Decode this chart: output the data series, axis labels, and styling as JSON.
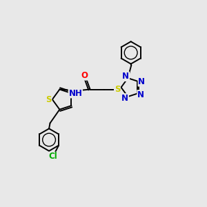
{
  "background_color": "#e8e8e8",
  "bond_color": "#000000",
  "atom_colors": {
    "N": "#0000cc",
    "S": "#cccc00",
    "O": "#ff0000",
    "Cl": "#00aa00",
    "C": "#000000",
    "H": "#000000"
  },
  "lw": 1.4,
  "fs": 8.5
}
